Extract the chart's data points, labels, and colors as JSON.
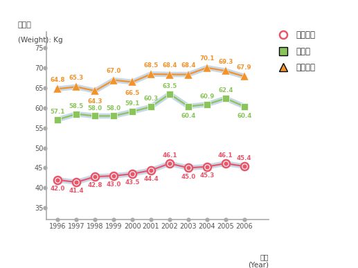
{
  "years": [
    1996,
    1997,
    1998,
    1999,
    2000,
    2001,
    2002,
    2003,
    2004,
    2005,
    2006
  ],
  "elementary": [
    42.0,
    41.4,
    42.8,
    43.0,
    43.5,
    44.4,
    46.1,
    45.0,
    45.3,
    46.1,
    45.4
  ],
  "middle": [
    57.1,
    58.5,
    58.0,
    58.0,
    59.1,
    60.3,
    63.5,
    60.4,
    60.9,
    62.4,
    60.4
  ],
  "high": [
    64.8,
    65.3,
    64.3,
    67.0,
    66.5,
    68.5,
    68.4,
    68.4,
    70.1,
    69.3,
    67.9
  ],
  "elementary_color": "#e8566a",
  "middle_color": "#8bc45a",
  "high_color": "#f0932b",
  "line_color": "#c8d8e8",
  "axis_color": "#aaaaaa",
  "ylabel_line1": "땸무게",
  "ylabel_line2": "(Weight): Kg",
  "xlabel_line1": "연도",
  "xlabel_line2": "(Year)",
  "legend_labels": [
    "초등학교",
    "중학교",
    "고등학교"
  ],
  "ylim_min": 32,
  "ylim_max": 79,
  "yticks": [
    35,
    40,
    45,
    50,
    55,
    60,
    65,
    70,
    75
  ],
  "background_color": "#ffffff",
  "elem_label_above": [
    false,
    false,
    false,
    false,
    false,
    false,
    true,
    false,
    false,
    true,
    true
  ],
  "mid_label_above": [
    true,
    true,
    true,
    true,
    true,
    true,
    true,
    false,
    true,
    true,
    false
  ],
  "high_label_above": [
    true,
    true,
    false,
    true,
    false,
    true,
    true,
    true,
    true,
    true,
    true
  ]
}
